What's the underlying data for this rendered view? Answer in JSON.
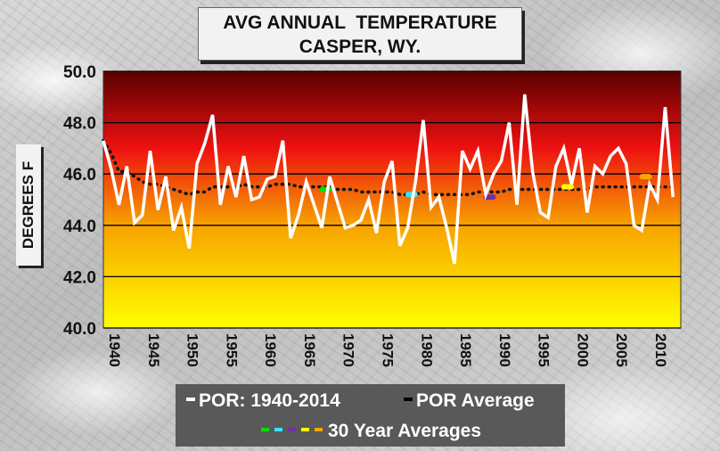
{
  "title": {
    "line1": "AVG ANNUAL  TEMPERATURE",
    "line2": "CASPER, WY."
  },
  "ylabel": "DEGREES F",
  "legend": {
    "por_label": "POR: 1940-2014",
    "por_avg_label": "POR Average",
    "thirty_label": "30 Year Averages",
    "thirty_colors": [
      "#00e000",
      "#33e6ff",
      "#7030a0",
      "#ffff00",
      "#ffa500"
    ]
  },
  "colors": {
    "series": "#ffffff",
    "por_average": "#111111",
    "gradient_top": "#5a0000",
    "gradient_mid": "#ee1111",
    "gradient_bottom": "#ffff00"
  },
  "chart_data": {
    "type": "line",
    "title": "AVG ANNUAL  TEMPERATURE CASPER, WY.",
    "xlabel": "",
    "ylabel": "DEGREES F",
    "xlim": [
      1940,
      2014
    ],
    "ylim": [
      40.0,
      50.0
    ],
    "x_ticks": [
      "1940",
      "1945",
      "1950",
      "1955",
      "1960",
      "1965",
      "1970",
      "1975",
      "1980",
      "1985",
      "1990",
      "1995",
      "2000",
      "2005",
      "2010"
    ],
    "y_ticks": [
      "40.0",
      "42.0",
      "44.0",
      "46.0",
      "48.0",
      "50.0"
    ],
    "grid": true,
    "legend_position": "bottom",
    "series": [
      {
        "name": "POR: 1940-2014",
        "x": [
          1940,
          1941,
          1942,
          1943,
          1944,
          1945,
          1946,
          1947,
          1948,
          1949,
          1950,
          1951,
          1952,
          1953,
          1954,
          1955,
          1956,
          1957,
          1958,
          1959,
          1960,
          1961,
          1962,
          1963,
          1964,
          1965,
          1966,
          1967,
          1968,
          1969,
          1970,
          1971,
          1972,
          1973,
          1974,
          1975,
          1976,
          1977,
          1978,
          1979,
          1980,
          1981,
          1982,
          1983,
          1984,
          1985,
          1986,
          1987,
          1988,
          1989,
          1990,
          1991,
          1992,
          1993,
          1994,
          1995,
          1996,
          1997,
          1998,
          1999,
          2000,
          2001,
          2002,
          2003,
          2004,
          2005,
          2006,
          2007,
          2008,
          2009,
          2010,
          2011,
          2012,
          2013
        ],
        "y": [
          47.3,
          46.2,
          44.8,
          46.3,
          44.1,
          44.4,
          46.9,
          44.6,
          45.9,
          43.8,
          44.7,
          43.1,
          46.4,
          47.2,
          48.3,
          44.8,
          46.3,
          45.1,
          46.7,
          45.0,
          45.1,
          45.8,
          45.9,
          47.3,
          43.5,
          44.4,
          45.7,
          44.8,
          43.9,
          45.9,
          44.9,
          43.9,
          44.0,
          44.2,
          45.0,
          43.7,
          45.7,
          46.5,
          43.2,
          43.9,
          45.7,
          48.1,
          44.7,
          45.1,
          43.9,
          42.5,
          46.9,
          46.2,
          46.9,
          45.2,
          46.0,
          46.5,
          48.0,
          44.8,
          49.1,
          46.1,
          44.5,
          44.3,
          46.3,
          47.0,
          45.6,
          47.0,
          44.5,
          46.3,
          46.0,
          46.7,
          47.0,
          46.4,
          44.0,
          43.8,
          45.6,
          45.0,
          48.6,
          45.1
        ]
      },
      {
        "name": "POR Average",
        "x": [
          1940,
          1941,
          1942,
          1943,
          1944,
          1945,
          1946,
          1947,
          1948,
          1949,
          1950,
          1951,
          1952,
          1953,
          1954,
          1955,
          1956,
          1957,
          1958,
          1959,
          1960,
          1961,
          1962,
          1963,
          1964,
          1965,
          1966,
          1967,
          1968,
          1969,
          1970,
          1971,
          1972,
          1973,
          1974,
          1975,
          1976,
          1977,
          1978,
          1979,
          1980,
          1981,
          1982,
          1983,
          1984,
          1985,
          1986,
          1987,
          1988,
          1989,
          1990,
          1991,
          1992,
          1993,
          1994,
          1995,
          1996,
          1997,
          1998,
          1999,
          2000,
          2001,
          2002,
          2003,
          2004,
          2005,
          2006,
          2007,
          2008,
          2009,
          2010,
          2011,
          2012,
          2013
        ],
        "y": [
          47.3,
          46.8,
          46.1,
          46.1,
          45.9,
          45.7,
          45.6,
          45.6,
          45.5,
          45.4,
          45.3,
          45.2,
          45.3,
          45.3,
          45.5,
          45.5,
          45.5,
          45.5,
          45.6,
          45.5,
          45.5,
          45.5,
          45.6,
          45.6,
          45.6,
          45.5,
          45.5,
          45.5,
          45.5,
          45.5,
          45.4,
          45.4,
          45.4,
          45.3,
          45.3,
          45.3,
          45.3,
          45.3,
          45.2,
          45.2,
          45.2,
          45.3,
          45.2,
          45.2,
          45.2,
          45.2,
          45.2,
          45.2,
          45.3,
          45.3,
          45.3,
          45.3,
          45.4,
          45.4,
          45.4,
          45.4,
          45.4,
          45.4,
          45.4,
          45.4,
          45.4,
          45.4,
          45.4,
          45.5,
          45.5,
          45.5,
          45.5,
          45.5,
          45.5,
          45.5,
          45.5,
          45.5,
          45.5,
          45.5
        ]
      }
    ],
    "thirty_year_averages": [
      {
        "x": 1968.5,
        "y": 45.4,
        "color": "#00e000"
      },
      {
        "x": 1979.5,
        "y": 45.2,
        "color": "#33e6ff"
      },
      {
        "x": 1989.5,
        "y": 45.1,
        "color": "#7030a0"
      },
      {
        "x": 1999.5,
        "y": 45.5,
        "color": "#ffff00"
      },
      {
        "x": 2009.5,
        "y": 45.9,
        "color": "#ffa500"
      }
    ]
  }
}
